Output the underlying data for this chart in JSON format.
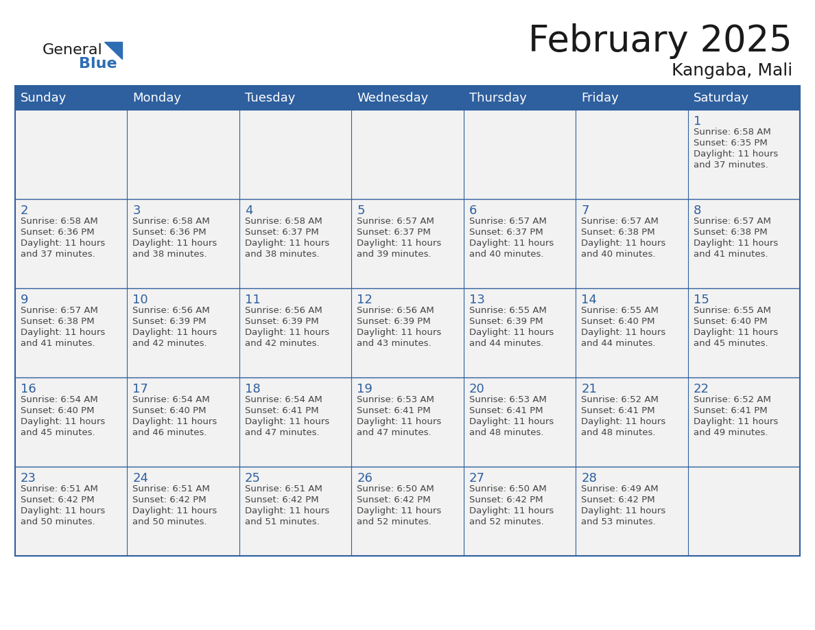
{
  "title": "February 2025",
  "location": "Kangaba, Mali",
  "days_of_week": [
    "Sunday",
    "Monday",
    "Tuesday",
    "Wednesday",
    "Thursday",
    "Friday",
    "Saturday"
  ],
  "header_bg": "#2E5F9E",
  "header_text": "#FFFFFF",
  "cell_bg_light": "#F2F2F2",
  "border_color": "#2E5F9E",
  "day_number_color": "#2E5F9E",
  "info_text_color": "#444444",
  "title_color": "#1a1a1a",
  "logo_general_color": "#1a1a1a",
  "logo_blue_color": "#2E6DB4",
  "calendar_data": [
    [
      null,
      null,
      null,
      null,
      null,
      null,
      {
        "day": 1,
        "sunrise": "6:58 AM",
        "sunset": "6:35 PM",
        "daylight": "11 hours and 37 minutes."
      }
    ],
    [
      {
        "day": 2,
        "sunrise": "6:58 AM",
        "sunset": "6:36 PM",
        "daylight": "11 hours and 37 minutes."
      },
      {
        "day": 3,
        "sunrise": "6:58 AM",
        "sunset": "6:36 PM",
        "daylight": "11 hours and 38 minutes."
      },
      {
        "day": 4,
        "sunrise": "6:58 AM",
        "sunset": "6:37 PM",
        "daylight": "11 hours and 38 minutes."
      },
      {
        "day": 5,
        "sunrise": "6:57 AM",
        "sunset": "6:37 PM",
        "daylight": "11 hours and 39 minutes."
      },
      {
        "day": 6,
        "sunrise": "6:57 AM",
        "sunset": "6:37 PM",
        "daylight": "11 hours and 40 minutes."
      },
      {
        "day": 7,
        "sunrise": "6:57 AM",
        "sunset": "6:38 PM",
        "daylight": "11 hours and 40 minutes."
      },
      {
        "day": 8,
        "sunrise": "6:57 AM",
        "sunset": "6:38 PM",
        "daylight": "11 hours and 41 minutes."
      }
    ],
    [
      {
        "day": 9,
        "sunrise": "6:57 AM",
        "sunset": "6:38 PM",
        "daylight": "11 hours and 41 minutes."
      },
      {
        "day": 10,
        "sunrise": "6:56 AM",
        "sunset": "6:39 PM",
        "daylight": "11 hours and 42 minutes."
      },
      {
        "day": 11,
        "sunrise": "6:56 AM",
        "sunset": "6:39 PM",
        "daylight": "11 hours and 42 minutes."
      },
      {
        "day": 12,
        "sunrise": "6:56 AM",
        "sunset": "6:39 PM",
        "daylight": "11 hours and 43 minutes."
      },
      {
        "day": 13,
        "sunrise": "6:55 AM",
        "sunset": "6:39 PM",
        "daylight": "11 hours and 44 minutes."
      },
      {
        "day": 14,
        "sunrise": "6:55 AM",
        "sunset": "6:40 PM",
        "daylight": "11 hours and 44 minutes."
      },
      {
        "day": 15,
        "sunrise": "6:55 AM",
        "sunset": "6:40 PM",
        "daylight": "11 hours and 45 minutes."
      }
    ],
    [
      {
        "day": 16,
        "sunrise": "6:54 AM",
        "sunset": "6:40 PM",
        "daylight": "11 hours and 45 minutes."
      },
      {
        "day": 17,
        "sunrise": "6:54 AM",
        "sunset": "6:40 PM",
        "daylight": "11 hours and 46 minutes."
      },
      {
        "day": 18,
        "sunrise": "6:54 AM",
        "sunset": "6:41 PM",
        "daylight": "11 hours and 47 minutes."
      },
      {
        "day": 19,
        "sunrise": "6:53 AM",
        "sunset": "6:41 PM",
        "daylight": "11 hours and 47 minutes."
      },
      {
        "day": 20,
        "sunrise": "6:53 AM",
        "sunset": "6:41 PM",
        "daylight": "11 hours and 48 minutes."
      },
      {
        "day": 21,
        "sunrise": "6:52 AM",
        "sunset": "6:41 PM",
        "daylight": "11 hours and 48 minutes."
      },
      {
        "day": 22,
        "sunrise": "6:52 AM",
        "sunset": "6:41 PM",
        "daylight": "11 hours and 49 minutes."
      }
    ],
    [
      {
        "day": 23,
        "sunrise": "6:51 AM",
        "sunset": "6:42 PM",
        "daylight": "11 hours and 50 minutes."
      },
      {
        "day": 24,
        "sunrise": "6:51 AM",
        "sunset": "6:42 PM",
        "daylight": "11 hours and 50 minutes."
      },
      {
        "day": 25,
        "sunrise": "6:51 AM",
        "sunset": "6:42 PM",
        "daylight": "11 hours and 51 minutes."
      },
      {
        "day": 26,
        "sunrise": "6:50 AM",
        "sunset": "6:42 PM",
        "daylight": "11 hours and 52 minutes."
      },
      {
        "day": 27,
        "sunrise": "6:50 AM",
        "sunset": "6:42 PM",
        "daylight": "11 hours and 52 minutes."
      },
      {
        "day": 28,
        "sunrise": "6:49 AM",
        "sunset": "6:42 PM",
        "daylight": "11 hours and 53 minutes."
      },
      null
    ]
  ]
}
